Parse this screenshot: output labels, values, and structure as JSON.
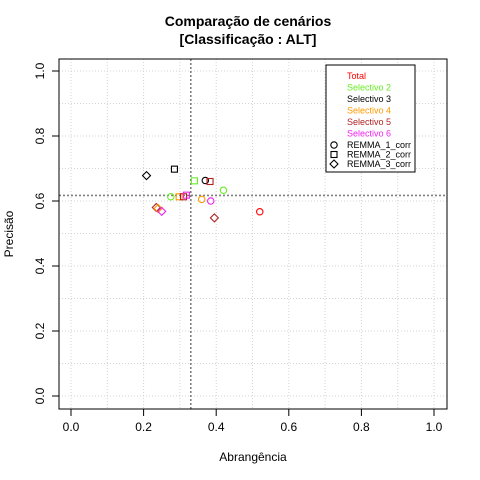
{
  "chart_data": {
    "type": "scatter",
    "title": "Comparação de cenários",
    "subtitle": "[Classificação : ALT]",
    "xlabel": "Abrangência",
    "ylabel": "Precisão",
    "xlim": [
      0,
      1
    ],
    "ylim": [
      0,
      1
    ],
    "xticks": [
      "0.0",
      "0.2",
      "0.4",
      "0.6",
      "0.8",
      "1.0"
    ],
    "yticks": [
      "0.0",
      "0.2",
      "0.4",
      "0.6",
      "0.8",
      "1.0"
    ],
    "grid": true,
    "reference_lines": {
      "x": 0.33,
      "y": 0.617
    },
    "legend_position": "top-right",
    "legend_colors": [
      {
        "label": "Total",
        "color": "#ff0000"
      },
      {
        "label": "Selectivo 2",
        "color": "#66ee22"
      },
      {
        "label": "Selectivo 3",
        "color": "#000000"
      },
      {
        "label": "Selectivo 4",
        "color": "#ff9900"
      },
      {
        "label": "Selectivo 5",
        "color": "#b22222"
      },
      {
        "label": "Selectivo 6",
        "color": "#ee22ee"
      }
    ],
    "legend_shapes": [
      {
        "label": "REMMA_1_corr",
        "shape": "circle"
      },
      {
        "label": "REMMA_2_corr",
        "shape": "square"
      },
      {
        "label": "REMMA_3_corr",
        "shape": "diamond"
      }
    ],
    "points": [
      {
        "x": 0.52,
        "y": 0.567,
        "color": "#ff0000",
        "shape": "circle"
      },
      {
        "x": 0.42,
        "y": 0.633,
        "color": "#66ee22",
        "shape": "circle"
      },
      {
        "x": 0.37,
        "y": 0.663,
        "color": "#000000",
        "shape": "circle"
      },
      {
        "x": 0.36,
        "y": 0.605,
        "color": "#ff9900",
        "shape": "circle"
      },
      {
        "x": 0.395,
        "y": 0.548,
        "color": "#b22222",
        "shape": "diamond"
      },
      {
        "x": 0.385,
        "y": 0.6,
        "color": "#ee22ee",
        "shape": "circle"
      },
      {
        "x": 0.285,
        "y": 0.698,
        "color": "#000000",
        "shape": "square"
      },
      {
        "x": 0.34,
        "y": 0.662,
        "color": "#66ee22",
        "shape": "square"
      },
      {
        "x": 0.383,
        "y": 0.66,
        "color": "#b22222",
        "shape": "square"
      },
      {
        "x": 0.298,
        "y": 0.613,
        "color": "#ff9900",
        "shape": "square"
      },
      {
        "x": 0.31,
        "y": 0.613,
        "color": "#b22222",
        "shape": "square"
      },
      {
        "x": 0.275,
        "y": 0.613,
        "color": "#66ee22",
        "shape": "circle"
      },
      {
        "x": 0.208,
        "y": 0.678,
        "color": "#000000",
        "shape": "diamond"
      },
      {
        "x": 0.235,
        "y": 0.58,
        "color": "#b22222",
        "shape": "diamond"
      },
      {
        "x": 0.24,
        "y": 0.577,
        "color": "#ff9900",
        "shape": "diamond"
      },
      {
        "x": 0.25,
        "y": 0.568,
        "color": "#ee22ee",
        "shape": "diamond"
      },
      {
        "x": 0.318,
        "y": 0.618,
        "color": "#ee22ee",
        "shape": "square"
      }
    ]
  }
}
